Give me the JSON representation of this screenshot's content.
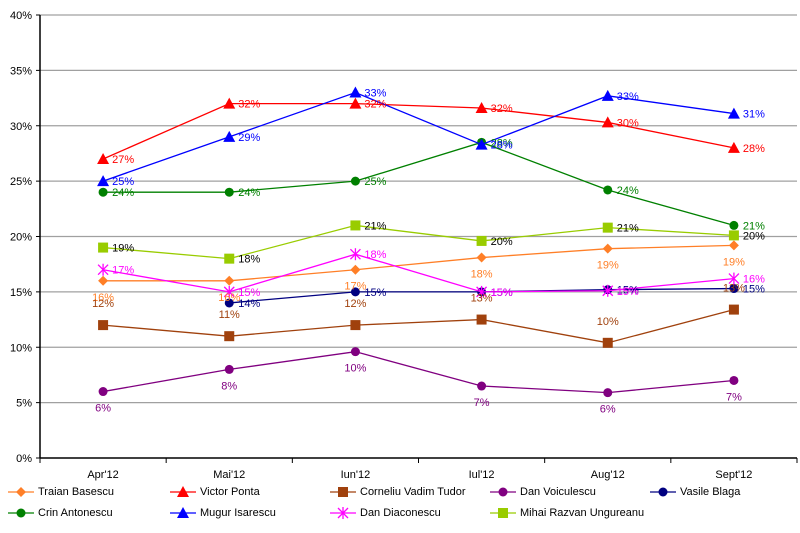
{
  "chart_data": {
    "type": "line",
    "title": "",
    "xlabel": "",
    "ylabel": "",
    "categories": [
      "Apr'12",
      "Mai'12",
      "Iun'12",
      "Iul'12",
      "Aug'12",
      "Sept'12"
    ],
    "y_ticks": [
      "0%",
      "5%",
      "10%",
      "15%",
      "20%",
      "25%",
      "30%",
      "35%",
      "40%"
    ],
    "ylim": [
      0,
      40
    ],
    "y_step": 5,
    "grid": true,
    "legend_position": "bottom",
    "series": [
      {
        "name": "Traian Basescu",
        "color": "#ff7f27",
        "marker": "diamond",
        "values": [
          16,
          16,
          17,
          18.1,
          18.9,
          19.2
        ],
        "labels": [
          "16%",
          "16%",
          "17%",
          "18%",
          "19%",
          "19%"
        ],
        "label_pos": "below"
      },
      {
        "name": "Victor Ponta",
        "color": "#ff0000",
        "marker": "triangle",
        "values": [
          27,
          32,
          32,
          31.6,
          30.3,
          28
        ],
        "labels": [
          "27%",
          "32%",
          "32%",
          "32%",
          "30%",
          "28%"
        ],
        "label_pos": "right"
      },
      {
        "name": "Corneliu Vadim Tudor",
        "color": "#a0410d",
        "marker": "square",
        "values": [
          12,
          11,
          12,
          12.5,
          10.4,
          13.4
        ],
        "labels": [
          "12%",
          "11%",
          "12%",
          "13%",
          "10%",
          "13%"
        ],
        "label_pos": "above"
      },
      {
        "name": "Dan Voiculescu",
        "color": "#800080",
        "marker": "circle",
        "values": [
          6,
          8,
          9.6,
          6.5,
          5.9,
          7
        ],
        "labels": [
          "6%",
          "8%",
          "10%",
          "7%",
          "6%",
          "7%"
        ],
        "label_pos": "below"
      },
      {
        "name": "Vasile Blaga",
        "color": "#000080",
        "marker": "circle",
        "values": [
          null,
          14,
          15,
          15,
          15.2,
          15.3
        ],
        "labels": [
          null,
          "14%",
          "15%",
          "15%",
          "15%",
          "15%"
        ],
        "label_pos": "right"
      },
      {
        "name": "Crin Antonescu",
        "color": "#008000",
        "marker": "circle",
        "values": [
          24,
          24,
          25,
          28.5,
          24.2,
          21
        ],
        "labels": [
          "24%",
          "24%",
          "25%",
          "28%",
          "24%",
          "21%"
        ],
        "label_pos": "right"
      },
      {
        "name": "Mugur Isarescu",
        "color": "#0000ff",
        "marker": "triangle",
        "values": [
          25,
          29,
          33,
          28.3,
          32.7,
          31.1
        ],
        "labels": [
          "25%",
          "29%",
          "33%",
          "28%",
          "33%",
          "31%"
        ],
        "label_pos": "right"
      },
      {
        "name": "Dan Diaconescu",
        "color": "#ff00ff",
        "marker": "star",
        "values": [
          17,
          15,
          18.4,
          15,
          15.1,
          16.2
        ],
        "labels": [
          "17%",
          "15%",
          "18%",
          "15%",
          "15%",
          "16%"
        ],
        "label_pos": "right"
      },
      {
        "name": "Mihai Razvan Ungureanu",
        "color": "#99cc00",
        "marker": "square",
        "values": [
          19,
          18,
          21,
          19.6,
          20.8,
          20.1
        ],
        "labels": [
          "19%",
          "18%",
          "21%",
          "20%",
          "21%",
          "20%"
        ],
        "label_pos": "right",
        "label_color": "#000000"
      }
    ]
  }
}
